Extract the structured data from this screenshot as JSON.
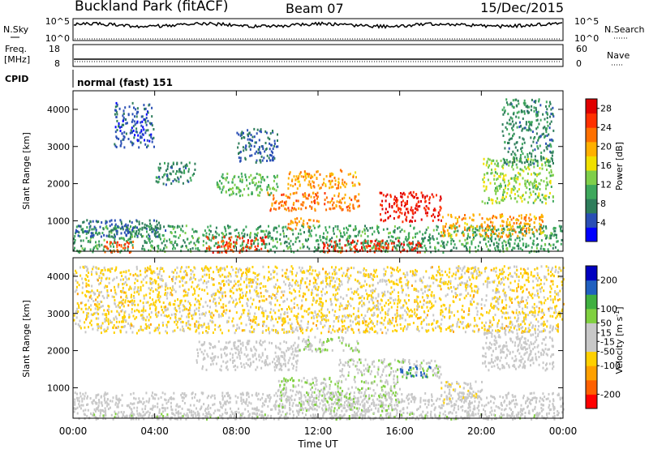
{
  "header": {
    "station": "Buckland Park (fitACF)",
    "beam": "Beam 07",
    "date": "15/Dec/2015"
  },
  "top_panels": {
    "nsky_label": "N.Sky",
    "nsky_ticks": [
      "10^5",
      "10^0"
    ],
    "nsearch_label": "N.Search",
    "nsearch_ticks": [
      "10^5",
      "10^0"
    ],
    "freq_label_1": "Freq.",
    "freq_label_2": "[MHz]",
    "freq_ticks": [
      "18",
      "8"
    ],
    "nave_label": "Nave",
    "nave_ticks": [
      "60",
      "0"
    ],
    "cpid_label": "CPID",
    "cpid_value": "normal (fast) 151"
  },
  "x_axis": {
    "label": "Time UT",
    "ticks": [
      "00:00",
      "04:00",
      "08:00",
      "12:00",
      "16:00",
      "20:00",
      "00:00"
    ]
  },
  "colors": {
    "power": [
      "#0000ff",
      "#2a4fb5",
      "#2e7d5b",
      "#3ea85c",
      "#7fcf4a",
      "#f0e000",
      "#ffb000",
      "#ff7000",
      "#ff3000",
      "#e00000"
    ],
    "velocity": [
      "#ff0000",
      "#ff6000",
      "#ffa000",
      "#ffd000",
      "#c8c8c8",
      "#c8c8c8",
      "#80d040",
      "#40b040",
      "#2060c0",
      "#0000c0"
    ]
  },
  "chart_data": [
    {
      "type": "heatmap",
      "title": "Power",
      "xlabel": "Time UT",
      "ylabel": "Slant Range [km]",
      "xlim": [
        0,
        24
      ],
      "ylim": [
        180,
        4500
      ],
      "yticks": [
        1000,
        2000,
        3000,
        4000
      ],
      "colorbar_label": "Power [dB]",
      "colorbar_ticks": [
        4,
        8,
        12,
        16,
        20,
        24,
        28
      ],
      "colorbar_range": [
        0,
        30
      ],
      "regions": [
        {
          "t": [
            0.0,
            24.0
          ],
          "r": [
            180,
            900
          ],
          "v": 10
        },
        {
          "t": [
            0.0,
            4.5
          ],
          "r": [
            600,
            1050
          ],
          "v": 6
        },
        {
          "t": [
            1.5,
            3.0
          ],
          "r": [
            180,
            500
          ],
          "v": 24
        },
        {
          "t": [
            6.5,
            9.5
          ],
          "r": [
            180,
            600
          ],
          "v": 25
        },
        {
          "t": [
            10.5,
            12.0
          ],
          "r": [
            800,
            1100
          ],
          "v": 21
        },
        {
          "t": [
            12.0,
            17.0
          ],
          "r": [
            180,
            500
          ],
          "v": 26
        },
        {
          "t": [
            15.0,
            18.0
          ],
          "r": [
            1000,
            1800
          ],
          "v": 27
        },
        {
          "t": [
            9.5,
            14.0
          ],
          "r": [
            1300,
            1800
          ],
          "v": 22
        },
        {
          "t": [
            7.0,
            10.0
          ],
          "r": [
            1700,
            2300
          ],
          "v": 12
        },
        {
          "t": [
            10.5,
            14.0
          ],
          "r": [
            1900,
            2400
          ],
          "v": 20
        },
        {
          "t": [
            4.0,
            6.0
          ],
          "r": [
            2000,
            2600
          ],
          "v": 8
        },
        {
          "t": [
            20.0,
            23.5
          ],
          "r": [
            1500,
            2700
          ],
          "v": 14
        },
        {
          "t": [
            18.0,
            23.0
          ],
          "r": [
            600,
            1200
          ],
          "v": 20
        },
        {
          "t": [
            8.0,
            10.0
          ],
          "r": [
            2600,
            3500
          ],
          "v": 6
        },
        {
          "t": [
            2.0,
            4.0
          ],
          "r": [
            3000,
            4200
          ],
          "v": 5
        },
        {
          "t": [
            21.0,
            23.5
          ],
          "r": [
            2500,
            4300
          ],
          "v": 8
        }
      ]
    },
    {
      "type": "heatmap",
      "title": "Velocity",
      "xlabel": "Time UT",
      "ylabel": "Slant Range [km]",
      "xlim": [
        0,
        24
      ],
      "ylim": [
        180,
        4500
      ],
      "yticks": [
        1000,
        2000,
        3000,
        4000
      ],
      "colorbar_label": "Velocity [m s^-1]",
      "colorbar_ticks": [
        -200,
        -100,
        -50,
        -15,
        15,
        50,
        100,
        200
      ],
      "colorbar_range": [
        -250,
        250
      ],
      "regions": [
        {
          "t": [
            0.0,
            24.0
          ],
          "r": [
            180,
            900
          ],
          "v": 0
        },
        {
          "t": [
            0.0,
            24.0
          ],
          "r": [
            180,
            350
          ],
          "v": 20
        },
        {
          "t": [
            10.0,
            16.0
          ],
          "r": [
            400,
            1300
          ],
          "v": 40
        },
        {
          "t": [
            13.0,
            18.0
          ],
          "r": [
            1300,
            1800
          ],
          "v": 30
        },
        {
          "t": [
            16.0,
            17.5
          ],
          "r": [
            1300,
            1600
          ],
          "v": 150
        },
        {
          "t": [
            11.0,
            14.0
          ],
          "r": [
            2000,
            2400
          ],
          "v": 40
        },
        {
          "t": [
            6.0,
            11.0
          ],
          "r": [
            1500,
            2300
          ],
          "v": 0
        },
        {
          "t": [
            18.0,
            20.0
          ],
          "r": [
            600,
            1200
          ],
          "v": -30
        },
        {
          "t": [
            20.0,
            23.5
          ],
          "r": [
            1500,
            2700
          ],
          "v": 0
        },
        {
          "t": [
            0.0,
            24.0
          ],
          "r": [
            2500,
            4300
          ],
          "v": -60
        }
      ]
    }
  ]
}
